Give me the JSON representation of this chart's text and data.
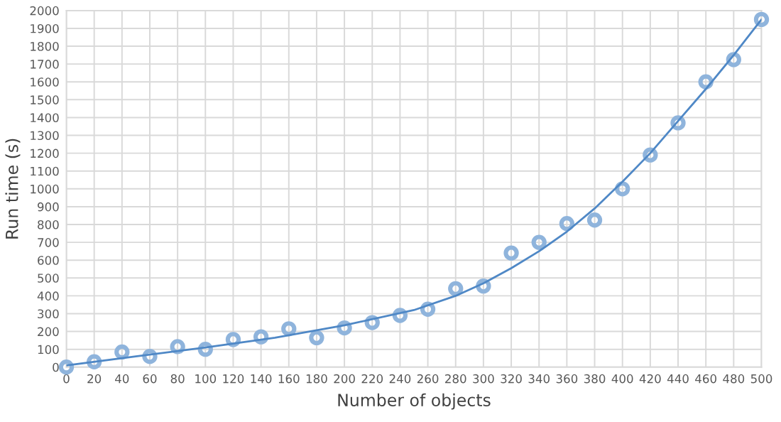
{
  "chart_data": {
    "type": "scatter",
    "xlabel": "Number of objects",
    "ylabel": "Run time (s)",
    "xlim": [
      0,
      500
    ],
    "xticks": [
      0,
      20,
      40,
      60,
      80,
      100,
      120,
      140,
      160,
      180,
      200,
      220,
      240,
      260,
      280,
      300,
      320,
      340,
      360,
      380,
      400,
      420,
      440,
      460,
      480,
      500
    ],
    "ylim": [
      0,
      2000
    ],
    "yticks": [
      0,
      100,
      200,
      300,
      400,
      500,
      600,
      700,
      800,
      900,
      1000,
      1100,
      1200,
      1300,
      1400,
      1500,
      1600,
      1700,
      1800,
      1900,
      2000
    ],
    "grid": true,
    "series": [
      {
        "marker": "circle",
        "color": "#8fb4dc",
        "x": [
          0,
          20,
          40,
          60,
          80,
          100,
          120,
          140,
          160,
          180,
          200,
          220,
          240,
          260,
          280,
          300,
          320,
          340,
          360,
          380,
          400,
          420,
          440,
          460,
          480,
          500
        ],
        "values": [
          0,
          30,
          85,
          60,
          115,
          100,
          155,
          170,
          215,
          165,
          220,
          250,
          290,
          325,
          440,
          455,
          640,
          700,
          805,
          825,
          1000,
          1190,
          1370,
          1600,
          1725,
          1950
        ]
      },
      {
        "type": "line",
        "marker": "none",
        "color": "#4f88c6",
        "x": [
          0,
          50,
          100,
          150,
          200,
          250,
          280,
          300,
          320,
          340,
          360,
          380,
          400,
          420,
          440,
          460,
          480,
          500
        ],
        "values": [
          10,
          60,
          110,
          165,
          235,
          320,
          400,
          470,
          555,
          650,
          760,
          890,
          1040,
          1200,
          1380,
          1560,
          1750,
          1950
        ]
      }
    ]
  }
}
